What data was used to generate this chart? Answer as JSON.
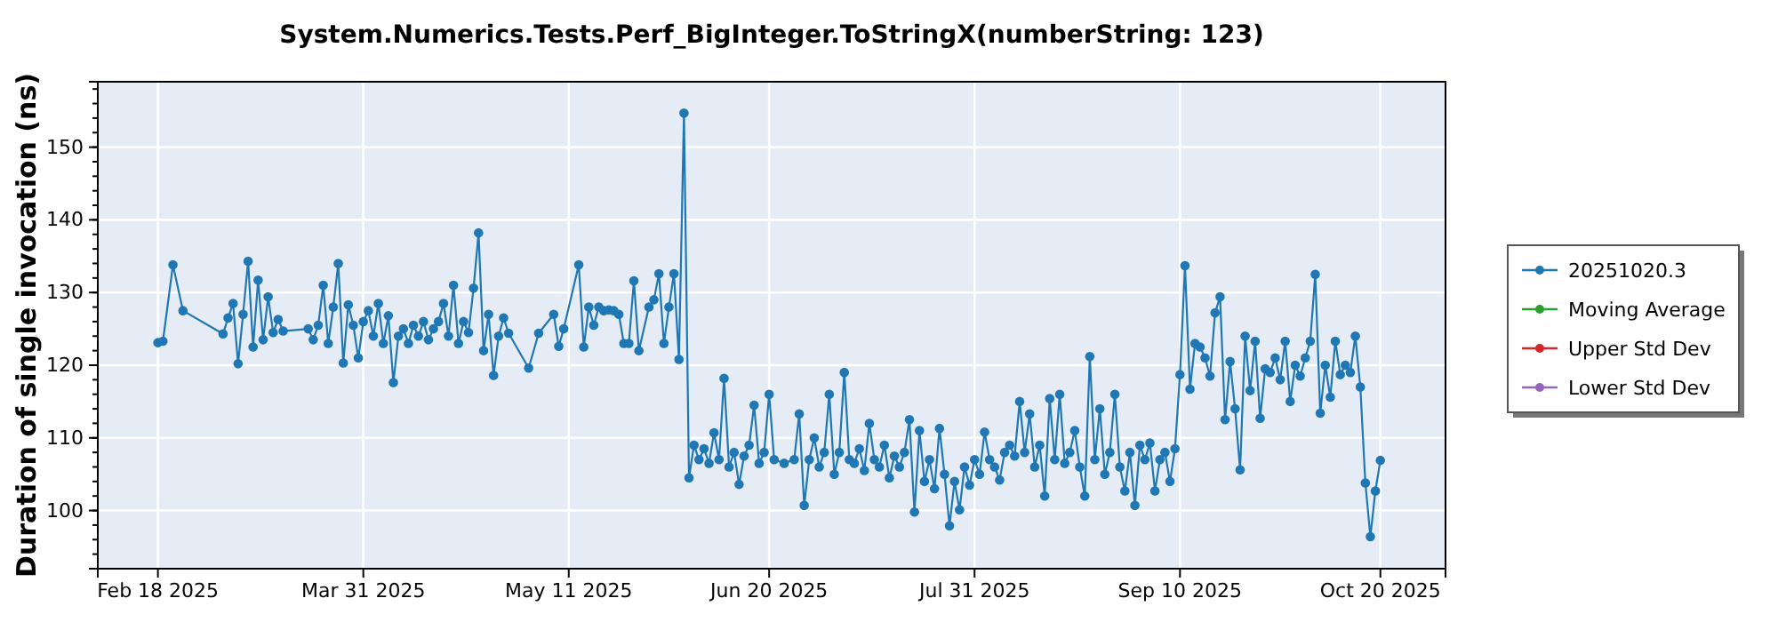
{
  "chart_data": {
    "type": "line",
    "title": "System.Numerics.Tests.Perf_BigInteger.ToStringX(numberString: 123)",
    "ylabel": "Duration of single invocation (ns)",
    "xlim": [
      "2025-02-06",
      "2025-11-02"
    ],
    "xticks": [
      {
        "value": "2025-02-18",
        "label": "Feb 18 2025"
      },
      {
        "value": "2025-03-31",
        "label": "Mar 31 2025"
      },
      {
        "value": "2025-05-11",
        "label": "May 11 2025"
      },
      {
        "value": "2025-06-20",
        "label": "Jun 20 2025"
      },
      {
        "value": "2025-07-31",
        "label": "Jul 31 2025"
      },
      {
        "value": "2025-09-10",
        "label": "Sep 10 2025"
      },
      {
        "value": "2025-10-20",
        "label": "Oct 20 2025"
      }
    ],
    "ylim": [
      92,
      159
    ],
    "yticks": [
      100,
      110,
      120,
      130,
      140,
      150
    ],
    "grid": true,
    "legend": "right",
    "marker": "circle",
    "line_style": "solid",
    "x": [
      "2025-02-18",
      "2025-02-19",
      "2025-02-21",
      "2025-02-23",
      "2025-03-03",
      "2025-03-04",
      "2025-03-05",
      "2025-03-06",
      "2025-03-07",
      "2025-03-08",
      "2025-03-09",
      "2025-03-10",
      "2025-03-11",
      "2025-03-12",
      "2025-03-13",
      "2025-03-14",
      "2025-03-15",
      "2025-03-20",
      "2025-03-21",
      "2025-03-22",
      "2025-03-23",
      "2025-03-24",
      "2025-03-25",
      "2025-03-26",
      "2025-03-27",
      "2025-03-28",
      "2025-03-29",
      "2025-03-30",
      "2025-03-31",
      "2025-04-01",
      "2025-04-02",
      "2025-04-03",
      "2025-04-04",
      "2025-04-05",
      "2025-04-06",
      "2025-04-07",
      "2025-04-08",
      "2025-04-09",
      "2025-04-10",
      "2025-04-11",
      "2025-04-12",
      "2025-04-13",
      "2025-04-14",
      "2025-04-15",
      "2025-04-16",
      "2025-04-17",
      "2025-04-18",
      "2025-04-19",
      "2025-04-20",
      "2025-04-21",
      "2025-04-22",
      "2025-04-23",
      "2025-04-24",
      "2025-04-25",
      "2025-04-26",
      "2025-04-27",
      "2025-04-28",
      "2025-04-29",
      "2025-05-03",
      "2025-05-05",
      "2025-05-08",
      "2025-05-09",
      "2025-05-10",
      "2025-05-13",
      "2025-05-14",
      "2025-05-15",
      "2025-05-16",
      "2025-05-17",
      "2025-05-18",
      "2025-05-19",
      "2025-05-20",
      "2025-05-21",
      "2025-05-22",
      "2025-05-23",
      "2025-05-24",
      "2025-05-25",
      "2025-05-27",
      "2025-05-28",
      "2025-05-29",
      "2025-05-30",
      "2025-05-31",
      "2025-06-01",
      "2025-06-02",
      "2025-06-03",
      "2025-06-04",
      "2025-06-05",
      "2025-06-06",
      "2025-06-07",
      "2025-06-08",
      "2025-06-09",
      "2025-06-10",
      "2025-06-11",
      "2025-06-12",
      "2025-06-13",
      "2025-06-14",
      "2025-06-15",
      "2025-06-16",
      "2025-06-17",
      "2025-06-18",
      "2025-06-19",
      "2025-06-20",
      "2025-06-21",
      "2025-06-23",
      "2025-06-25",
      "2025-06-26",
      "2025-06-27",
      "2025-06-28",
      "2025-06-29",
      "2025-06-30",
      "2025-07-01",
      "2025-07-02",
      "2025-07-03",
      "2025-07-04",
      "2025-07-05",
      "2025-07-06",
      "2025-07-07",
      "2025-07-08",
      "2025-07-09",
      "2025-07-10",
      "2025-07-11",
      "2025-07-12",
      "2025-07-13",
      "2025-07-14",
      "2025-07-15",
      "2025-07-16",
      "2025-07-17",
      "2025-07-18",
      "2025-07-19",
      "2025-07-20",
      "2025-07-21",
      "2025-07-22",
      "2025-07-23",
      "2025-07-24",
      "2025-07-25",
      "2025-07-26",
      "2025-07-27",
      "2025-07-28",
      "2025-07-29",
      "2025-07-30",
      "2025-07-31",
      "2025-08-01",
      "2025-08-02",
      "2025-08-03",
      "2025-08-04",
      "2025-08-05",
      "2025-08-06",
      "2025-08-07",
      "2025-08-08",
      "2025-08-09",
      "2025-08-10",
      "2025-08-11",
      "2025-08-12",
      "2025-08-13",
      "2025-08-14",
      "2025-08-15",
      "2025-08-16",
      "2025-08-17",
      "2025-08-18",
      "2025-08-19",
      "2025-08-20",
      "2025-08-21",
      "2025-08-22",
      "2025-08-23",
      "2025-08-24",
      "2025-08-25",
      "2025-08-26",
      "2025-08-27",
      "2025-08-28",
      "2025-08-29",
      "2025-08-30",
      "2025-08-31",
      "2025-09-01",
      "2025-09-02",
      "2025-09-03",
      "2025-09-04",
      "2025-09-05",
      "2025-09-06",
      "2025-09-07",
      "2025-09-08",
      "2025-09-09",
      "2025-09-10",
      "2025-09-11",
      "2025-09-12",
      "2025-09-13",
      "2025-09-14",
      "2025-09-15",
      "2025-09-16",
      "2025-09-17",
      "2025-09-18",
      "2025-09-19",
      "2025-09-20",
      "2025-09-21",
      "2025-09-22",
      "2025-09-23",
      "2025-09-24",
      "2025-09-25",
      "2025-09-26",
      "2025-09-27",
      "2025-09-28",
      "2025-09-29",
      "2025-09-30",
      "2025-10-01",
      "2025-10-02",
      "2025-10-03",
      "2025-10-04",
      "2025-10-05",
      "2025-10-06",
      "2025-10-07",
      "2025-10-08",
      "2025-10-09",
      "2025-10-10",
      "2025-10-11",
      "2025-10-12",
      "2025-10-13",
      "2025-10-14",
      "2025-10-15",
      "2025-10-16",
      "2025-10-17",
      "2025-10-18",
      "2025-10-19",
      "2025-10-20"
    ],
    "series": [
      {
        "name": "20251020.3",
        "color": "#1f77b4",
        "values": [
          123.1,
          123.3,
          133.8,
          127.5,
          124.3,
          126.5,
          128.5,
          120.2,
          127,
          134.3,
          122.5,
          131.7,
          123.5,
          129.4,
          124.5,
          126.3,
          124.7,
          125,
          123.5,
          125.5,
          131,
          123,
          128,
          134,
          120.3,
          128.3,
          125.5,
          121,
          126,
          127.5,
          124,
          128.5,
          123,
          126.8,
          117.6,
          124,
          125,
          123,
          125.5,
          124,
          126,
          123.5,
          125,
          126,
          128.5,
          124,
          131,
          123,
          126,
          124.5,
          130.6,
          138.2,
          122,
          127,
          118.6,
          124,
          126.5,
          124.4,
          119.6,
          124.4,
          127,
          122.6,
          125,
          133.8,
          122.5,
          128,
          125.5,
          128,
          127.5,
          127.6,
          127.5,
          127,
          123,
          123,
          131.6,
          122,
          128,
          129,
          132.6,
          123,
          128,
          132.6,
          120.8,
          154.7,
          104.5,
          109,
          107,
          108.5,
          106.5,
          110.7,
          107,
          118.2,
          106,
          108,
          103.6,
          107.5,
          109,
          114.5,
          106.5,
          108,
          116,
          107,
          106.5,
          107,
          113.3,
          100.7,
          107,
          110,
          106,
          108,
          116,
          105,
          108,
          119,
          107,
          106.5,
          108.5,
          105.5,
          112,
          107,
          106,
          109,
          104.5,
          107.5,
          106,
          108,
          112.5,
          99.8,
          111,
          104,
          107,
          103,
          111.3,
          105,
          97.9,
          104,
          100.1,
          106,
          103.5,
          107,
          105,
          110.8,
          107,
          106,
          104.2,
          108,
          109,
          107.5,
          115,
          108,
          113.3,
          106,
          109,
          102,
          115.4,
          107,
          116,
          106.5,
          108,
          111,
          106,
          102,
          121.2,
          107,
          114,
          105,
          108,
          116,
          106,
          102.7,
          108,
          100.7,
          109,
          107,
          109.3,
          102.7,
          107,
          108,
          104,
          108.5,
          118.7,
          133.7,
          116.7,
          123,
          122.5,
          121,
          118.5,
          127.2,
          129.4,
          112.5,
          120.5,
          114,
          105.6,
          124,
          116.5,
          123.3,
          112.7,
          119.5,
          119,
          121,
          118,
          123.3,
          115,
          120,
          118.5,
          121,
          123.3,
          132.5,
          113.4,
          120,
          115.6,
          123.3,
          118.7,
          120,
          119,
          124,
          117,
          103.8,
          96.4,
          102.7,
          106.9
        ]
      },
      {
        "name": "Moving Average",
        "color": "#2ca02c",
        "values": [
          null,
          null,
          null,
          null,
          null,
          null,
          null,
          null,
          null,
          null,
          null,
          null,
          null,
          null,
          null,
          null,
          null,
          null,
          null,
          null,
          null,
          null,
          null,
          null,
          null,
          null,
          null,
          null,
          null,
          null,
          null,
          null,
          null,
          null,
          null,
          null,
          null,
          null,
          null,
          null,
          null,
          null,
          null,
          null,
          null,
          null,
          null,
          null,
          null,
          null,
          null,
          null,
          null,
          null,
          null,
          null,
          null,
          null,
          null,
          null,
          null,
          null,
          null,
          null,
          null,
          null,
          null,
          null,
          null,
          null,
          null,
          null,
          null,
          null,
          null,
          null,
          null,
          null,
          null,
          null,
          null,
          null,
          null,
          null,
          null,
          null,
          null,
          null,
          null,
          null,
          null,
          null,
          null,
          null,
          null,
          null,
          null,
          null,
          null,
          null,
          null,
          null,
          null,
          null,
          null,
          null,
          null,
          null,
          null,
          null,
          null,
          null,
          null,
          null,
          null,
          null,
          null,
          null,
          null,
          null,
          null,
          null,
          null,
          null,
          null,
          null,
          null,
          null,
          null,
          null,
          null,
          null,
          null,
          null,
          null,
          null,
          null,
          null,
          null,
          null,
          null,
          null,
          null,
          null,
          null,
          null,
          null,
          null,
          null,
          null,
          null,
          null,
          null,
          null,
          null,
          null,
          null,
          null,
          null,
          null,
          null,
          null,
          null,
          null,
          null,
          null,
          null,
          null,
          null,
          null,
          null,
          null,
          null,
          null,
          null,
          null,
          null,
          null,
          null,
          null,
          null,
          null,
          null,
          null,
          null,
          null,
          null,
          null,
          null,
          null,
          null,
          null,
          null,
          null,
          null,
          null,
          null,
          null,
          null,
          null,
          null,
          null,
          null,
          null,
          null,
          null,
          null,
          null,
          null,
          null,
          null,
          null,
          null,
          null,
          null,
          null,
          null,
          null,
          null,
          null,
          null
        ]
      },
      {
        "name": "Upper Std Dev",
        "color": "#d62728",
        "values": [
          null,
          null,
          null,
          null,
          null,
          null,
          null,
          null,
          null,
          null,
          null,
          null,
          null,
          null,
          null,
          null,
          null,
          null,
          null,
          null,
          null,
          null,
          null,
          null,
          null,
          null,
          null,
          null,
          null,
          null,
          null,
          null,
          null,
          null,
          null,
          null,
          null,
          null,
          null,
          null,
          null,
          null,
          null,
          null,
          null,
          null,
          null,
          null,
          null,
          null,
          null,
          null,
          null,
          null,
          null,
          null,
          null,
          null,
          null,
          null,
          null,
          null,
          null,
          null,
          null,
          null,
          null,
          null,
          null,
          null,
          null,
          null,
          null,
          null,
          null,
          null,
          null,
          null,
          null,
          null,
          null,
          null,
          null,
          null,
          null,
          null,
          null,
          null,
          null,
          null,
          null,
          null,
          null,
          null,
          null,
          null,
          null,
          null,
          null,
          null,
          null,
          null,
          null,
          null,
          null,
          null,
          null,
          null,
          null,
          null,
          null,
          null,
          null,
          null,
          null,
          null,
          null,
          null,
          null,
          null,
          null,
          null,
          null,
          null,
          null,
          null,
          null,
          null,
          null,
          null,
          null,
          null,
          null,
          null,
          null,
          null,
          null,
          null,
          null,
          null,
          null,
          null,
          null,
          null,
          null,
          null,
          null,
          null,
          null,
          null,
          null,
          null,
          null,
          null,
          null,
          null,
          null,
          null,
          null,
          null,
          null,
          null,
          null,
          null,
          null,
          null,
          null,
          null,
          null,
          null,
          null,
          null,
          null,
          null,
          null,
          null,
          null,
          null,
          null,
          null,
          null,
          null,
          null,
          null,
          null,
          null,
          null,
          null,
          null,
          null,
          null,
          null,
          null,
          null,
          null,
          null,
          null,
          null,
          null,
          null,
          null,
          null,
          null,
          null,
          null,
          null,
          null,
          null,
          null,
          null,
          null,
          null,
          null,
          null,
          null,
          null,
          null,
          null,
          null,
          null,
          null
        ]
      },
      {
        "name": "Lower Std Dev",
        "color": "#9467bd",
        "values": [
          null,
          null,
          null,
          null,
          null,
          null,
          null,
          null,
          null,
          null,
          null,
          null,
          null,
          null,
          null,
          null,
          null,
          null,
          null,
          null,
          null,
          null,
          null,
          null,
          null,
          null,
          null,
          null,
          null,
          null,
          null,
          null,
          null,
          null,
          null,
          null,
          null,
          null,
          null,
          null,
          null,
          null,
          null,
          null,
          null,
          null,
          null,
          null,
          null,
          null,
          null,
          null,
          null,
          null,
          null,
          null,
          null,
          null,
          null,
          null,
          null,
          null,
          null,
          null,
          null,
          null,
          null,
          null,
          null,
          null,
          null,
          null,
          null,
          null,
          null,
          null,
          null,
          null,
          null,
          null,
          null,
          null,
          null,
          null,
          null,
          null,
          null,
          null,
          null,
          null,
          null,
          null,
          null,
          null,
          null,
          null,
          null,
          null,
          null,
          null,
          null,
          null,
          null,
          null,
          null,
          null,
          null,
          null,
          null,
          null,
          null,
          null,
          null,
          null,
          null,
          null,
          null,
          null,
          null,
          null,
          null,
          null,
          null,
          null,
          null,
          null,
          null,
          null,
          null,
          null,
          null,
          null,
          null,
          null,
          null,
          null,
          null,
          null,
          null,
          null,
          null,
          null,
          null,
          null,
          null,
          null,
          null,
          null,
          null,
          null,
          null,
          null,
          null,
          null,
          null,
          null,
          null,
          null,
          null,
          null,
          null,
          null,
          null,
          null,
          null,
          null,
          null,
          null,
          null,
          null,
          null,
          null,
          null,
          null,
          null,
          null,
          null,
          null,
          null,
          null,
          null,
          null,
          null,
          null,
          null,
          null,
          null,
          null,
          null,
          null,
          null,
          null,
          null,
          null,
          null,
          null,
          null,
          null,
          null,
          null,
          null,
          null,
          null,
          null,
          null,
          null,
          null,
          null,
          null,
          null,
          null,
          null,
          null,
          null,
          null,
          null,
          null,
          null,
          null,
          null,
          null
        ]
      }
    ]
  }
}
